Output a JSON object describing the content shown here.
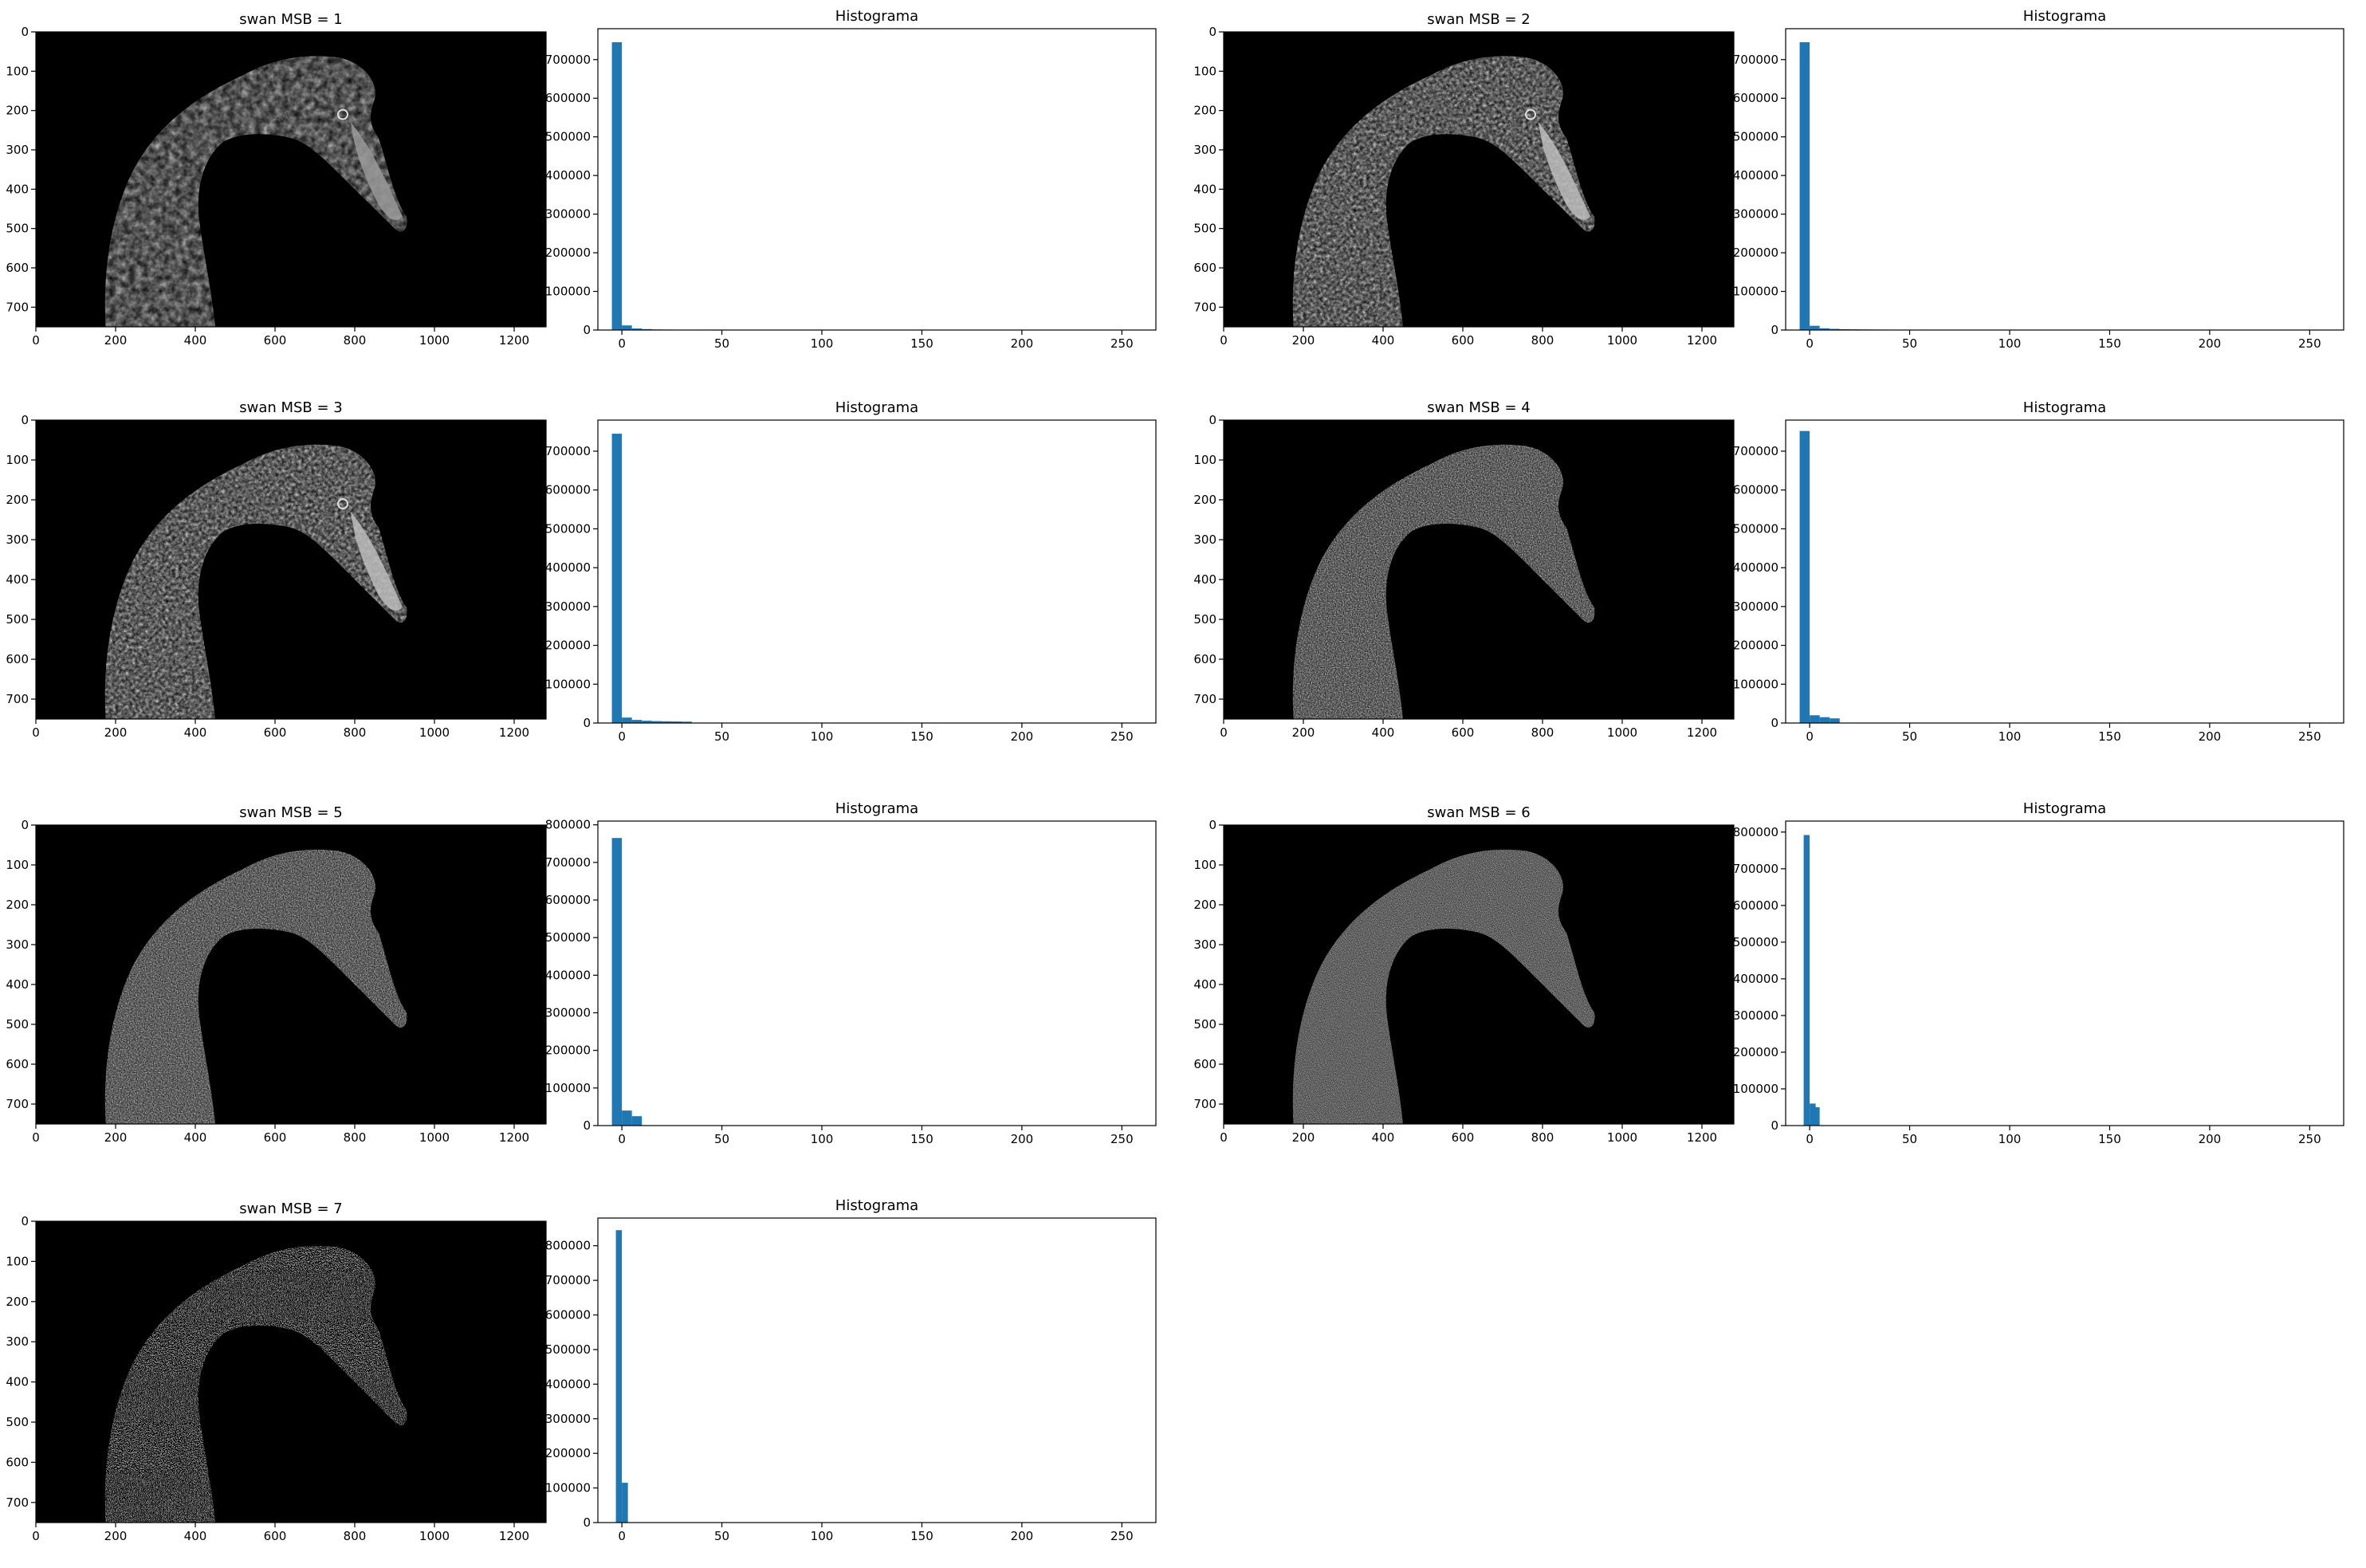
{
  "chart_data": [
    {
      "type": "image",
      "title": "swan MSB = 1",
      "x_ticks": [
        "0",
        "200",
        "400",
        "600",
        "800",
        "1000",
        "1200"
      ],
      "y_ticks": [
        "0",
        "100",
        "200",
        "300",
        "400",
        "500",
        "600",
        "700"
      ],
      "xlim": [
        0,
        1280
      ],
      "ylim": [
        750,
        0
      ],
      "texture": "smooth-dark"
    },
    {
      "type": "bar",
      "title": "Histograma",
      "x_ticks": [
        "0",
        "50",
        "100",
        "150",
        "200",
        "250"
      ],
      "y_ticks": [
        "0",
        "100000",
        "200000",
        "300000",
        "400000",
        "500000",
        "600000",
        "700000"
      ],
      "xlim": [
        -12,
        267
      ],
      "ylim": [
        0,
        780000
      ],
      "bin_width": 5,
      "bins": [
        [
          -5,
          745000
        ],
        [
          0,
          12000
        ],
        [
          5,
          4000
        ],
        [
          10,
          2500
        ],
        [
          15,
          1500
        ],
        [
          20,
          1200
        ],
        [
          25,
          900
        ],
        [
          30,
          800
        ],
        [
          35,
          700
        ],
        [
          40,
          600
        ],
        [
          45,
          400
        ]
      ]
    },
    {
      "type": "image",
      "title": "swan MSB = 2",
      "x_ticks": [
        "0",
        "200",
        "400",
        "600",
        "800",
        "1000",
        "1200"
      ],
      "y_ticks": [
        "0",
        "100",
        "200",
        "300",
        "400",
        "500",
        "600",
        "700"
      ],
      "xlim": [
        0,
        1280
      ],
      "ylim": [
        750,
        0
      ],
      "texture": "detail"
    },
    {
      "type": "bar",
      "title": "Histograma",
      "x_ticks": [
        "0",
        "50",
        "100",
        "150",
        "200",
        "250"
      ],
      "y_ticks": [
        "0",
        "100000",
        "200000",
        "300000",
        "400000",
        "500000",
        "600000",
        "700000"
      ],
      "xlim": [
        -12,
        267
      ],
      "ylim": [
        0,
        780000
      ],
      "bin_width": 5,
      "bins": [
        [
          -5,
          745000
        ],
        [
          0,
          11000
        ],
        [
          5,
          4500
        ],
        [
          10,
          3000
        ],
        [
          15,
          2200
        ],
        [
          20,
          1800
        ],
        [
          25,
          1500
        ],
        [
          30,
          1300
        ],
        [
          35,
          1100
        ],
        [
          40,
          1000
        ],
        [
          45,
          900
        ],
        [
          50,
          800
        ],
        [
          55,
          600
        ]
      ]
    },
    {
      "type": "image",
      "title": "swan MSB = 3",
      "x_ticks": [
        "0",
        "200",
        "400",
        "600",
        "800",
        "1000",
        "1200"
      ],
      "y_ticks": [
        "0",
        "100",
        "200",
        "300",
        "400",
        "500",
        "600",
        "700"
      ],
      "xlim": [
        0,
        1280
      ],
      "ylim": [
        750,
        0
      ],
      "texture": "detail"
    },
    {
      "type": "bar",
      "title": "Histograma",
      "x_ticks": [
        "0",
        "50",
        "100",
        "150",
        "200",
        "250"
      ],
      "y_ticks": [
        "0",
        "100000",
        "200000",
        "300000",
        "400000",
        "500000",
        "600000",
        "700000"
      ],
      "xlim": [
        -12,
        267
      ],
      "ylim": [
        0,
        780000
      ],
      "bin_width": 5,
      "bins": [
        [
          -5,
          745000
        ],
        [
          0,
          14000
        ],
        [
          5,
          8000
        ],
        [
          10,
          6000
        ],
        [
          15,
          5000
        ],
        [
          20,
          4500
        ],
        [
          25,
          4000
        ],
        [
          30,
          3500
        ]
      ]
    },
    {
      "type": "image",
      "title": "swan MSB = 4",
      "x_ticks": [
        "0",
        "200",
        "400",
        "600",
        "800",
        "1000",
        "1200"
      ],
      "y_ticks": [
        "0",
        "100",
        "200",
        "300",
        "400",
        "500",
        "600",
        "700"
      ],
      "xlim": [
        0,
        1280
      ],
      "ylim": [
        750,
        0
      ],
      "texture": "grain"
    },
    {
      "type": "bar",
      "title": "Histograma",
      "x_ticks": [
        "0",
        "50",
        "100",
        "150",
        "200",
        "250"
      ],
      "y_ticks": [
        "0",
        "100000",
        "200000",
        "300000",
        "400000",
        "500000",
        "600000",
        "700000"
      ],
      "xlim": [
        -12,
        267
      ],
      "ylim": [
        0,
        780000
      ],
      "bin_width": 5,
      "bins": [
        [
          -5,
          752000
        ],
        [
          0,
          20000
        ],
        [
          5,
          15000
        ],
        [
          10,
          12000
        ]
      ]
    },
    {
      "type": "image",
      "title": "swan MSB = 5",
      "x_ticks": [
        "0",
        "200",
        "400",
        "600",
        "800",
        "1000",
        "1200"
      ],
      "y_ticks": [
        "0",
        "100",
        "200",
        "300",
        "400",
        "500",
        "600",
        "700"
      ],
      "xlim": [
        0,
        1280
      ],
      "ylim": [
        750,
        0
      ],
      "texture": "grain"
    },
    {
      "type": "bar",
      "title": "Histograma",
      "x_ticks": [
        "0",
        "50",
        "100",
        "150",
        "200",
        "250"
      ],
      "y_ticks": [
        "0",
        "100000",
        "200000",
        "300000",
        "400000",
        "500000",
        "600000",
        "700000",
        "800000"
      ],
      "xlim": [
        -12,
        267
      ],
      "ylim": [
        0,
        810000
      ],
      "bin_width": 5,
      "bins": [
        [
          -5,
          765000
        ],
        [
          0,
          40000
        ],
        [
          5,
          25000
        ]
      ]
    },
    {
      "type": "image",
      "title": "swan MSB = 6",
      "x_ticks": [
        "0",
        "200",
        "400",
        "600",
        "800",
        "1000",
        "1200"
      ],
      "y_ticks": [
        "0",
        "100",
        "200",
        "300",
        "400",
        "500",
        "600",
        "700"
      ],
      "xlim": [
        0,
        1280
      ],
      "ylim": [
        750,
        0
      ],
      "texture": "noise"
    },
    {
      "type": "bar",
      "title": "Histograma",
      "x_ticks": [
        "0",
        "50",
        "100",
        "150",
        "200",
        "250"
      ],
      "y_ticks": [
        "0",
        "100000",
        "200000",
        "300000",
        "400000",
        "500000",
        "600000",
        "700000",
        "800000"
      ],
      "xlim": [
        -12,
        267
      ],
      "ylim": [
        0,
        830000
      ],
      "bin_width": 3,
      "bins": [
        [
          -3,
          792000
        ],
        [
          0,
          60000
        ],
        [
          2,
          50000
        ]
      ]
    },
    {
      "type": "image",
      "title": "swan MSB = 7",
      "x_ticks": [
        "0",
        "200",
        "400",
        "600",
        "800",
        "1000",
        "1200"
      ],
      "y_ticks": [
        "0",
        "100",
        "200",
        "300",
        "400",
        "500",
        "600",
        "700"
      ],
      "xlim": [
        0,
        1280
      ],
      "ylim": [
        750,
        0
      ],
      "texture": "binary"
    },
    {
      "type": "bar",
      "title": "Histograma",
      "x_ticks": [
        "0",
        "50",
        "100",
        "150",
        "200",
        "250"
      ],
      "y_ticks": [
        "0",
        "100000",
        "200000",
        "300000",
        "400000",
        "500000",
        "600000",
        "700000",
        "800000"
      ],
      "xlim": [
        -12,
        267
      ],
      "ylim": [
        0,
        880000
      ],
      "bin_width": 3,
      "bins": [
        [
          -3,
          845000
        ],
        [
          0,
          115000
        ]
      ]
    }
  ]
}
